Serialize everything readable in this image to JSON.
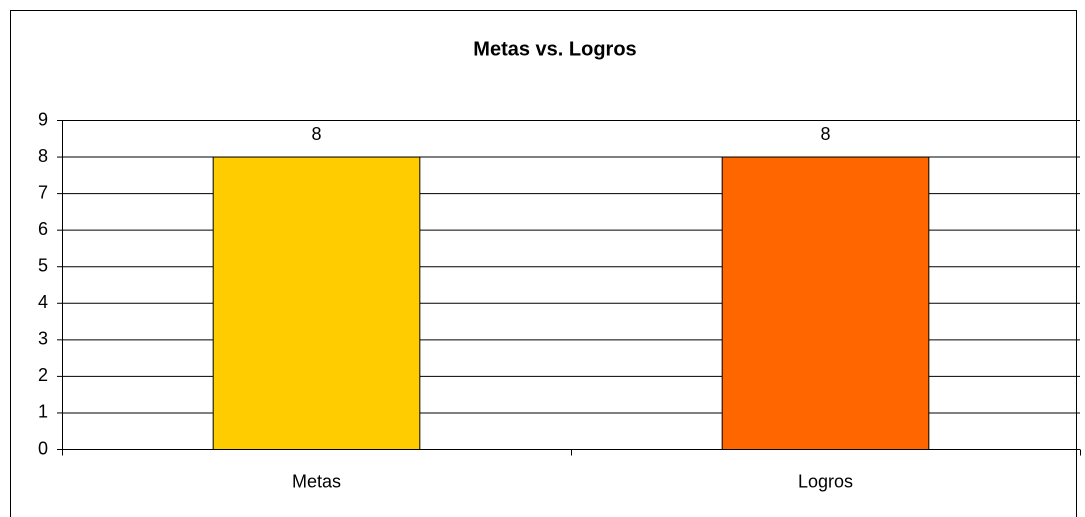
{
  "chart_data": {
    "type": "bar",
    "title": "Metas vs. Logros",
    "categories": [
      "Metas",
      "Logros"
    ],
    "values": [
      8,
      8
    ],
    "colors": [
      "#ffcc00",
      "#ff6600"
    ],
    "ylim": [
      0,
      9
    ],
    "yticks": [
      0,
      1,
      2,
      3,
      4,
      5,
      6,
      7,
      8,
      9
    ],
    "grid": true
  }
}
